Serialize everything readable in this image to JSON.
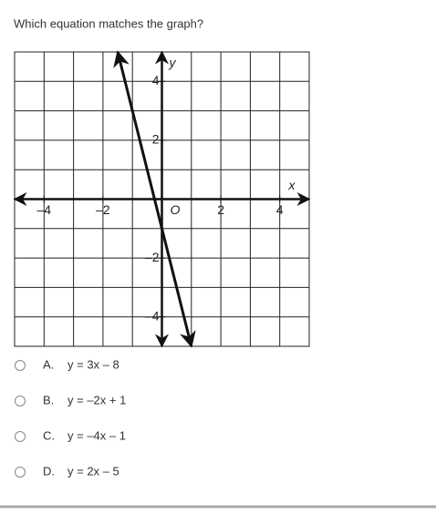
{
  "question": "Which equation matches the graph?",
  "graph": {
    "x_label": "x",
    "y_label": "y",
    "origin_label": "O",
    "xlim": [
      -5,
      5
    ],
    "ylim": [
      -5,
      5
    ],
    "xticks": [
      {
        "value": -4,
        "label": "–4"
      },
      {
        "value": -2,
        "label": "–2"
      },
      2,
      4
    ],
    "yticks": [
      4,
      2,
      {
        "value": -2,
        "label": "–2"
      },
      {
        "value": -4,
        "label": "–4"
      }
    ],
    "line": {
      "x": [
        -1.5,
        1
      ],
      "y": [
        5,
        -5
      ]
    }
  },
  "options": [
    {
      "letter": "A.",
      "equation": "y = 3x – 8"
    },
    {
      "letter": "B.",
      "equation": "y = –2x + 1"
    },
    {
      "letter": "C.",
      "equation": "y = –4x – 1"
    },
    {
      "letter": "D.",
      "equation": "y = 2x – 5"
    }
  ]
}
